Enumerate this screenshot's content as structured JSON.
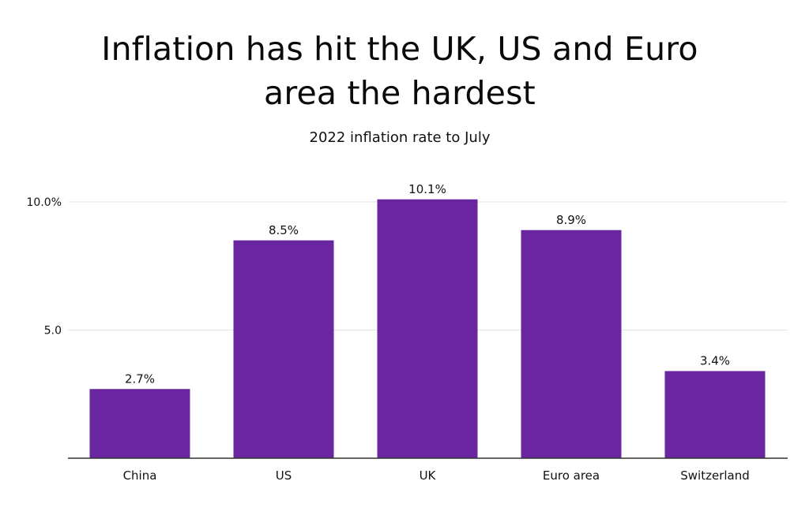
{
  "chart_data": {
    "type": "bar",
    "title_lines": [
      "Inflation has hit the UK, US and Euro",
      "area the hardest"
    ],
    "subtitle": "2022 inflation rate to July",
    "categories": [
      "China",
      "US",
      "UK",
      "Euro area",
      "Switzerland"
    ],
    "values": [
      2.7,
      8.5,
      10.1,
      8.9,
      3.4
    ],
    "value_labels": [
      "2.7%",
      "8.5%",
      "10.1%",
      "8.9%",
      "3.4%"
    ],
    "y_ticks": [
      {
        "value": 5,
        "label": "5.0"
      },
      {
        "value": 10,
        "label": "10.0%"
      }
    ],
    "ylim": [
      0,
      10.1
    ],
    "grid": true,
    "bar_color": "#6a26a0",
    "grid_color": "#e4e4e4",
    "axis_color": "#333333"
  }
}
